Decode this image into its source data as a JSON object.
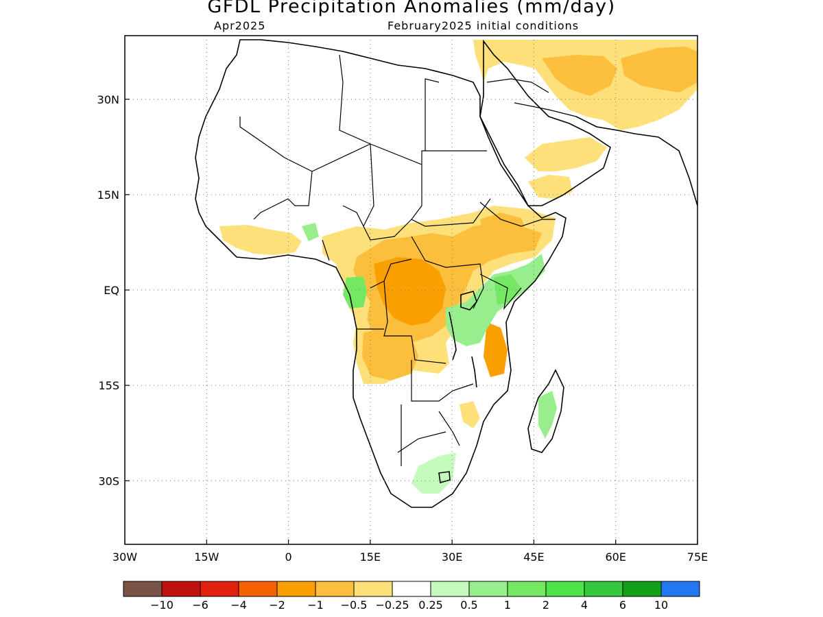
{
  "header": {
    "title": "GFDL Precipitation Anomalies (mm/day)",
    "month": "Apr2025",
    "init": "February2025 initial conditions"
  },
  "map": {
    "extent": {
      "lon": [
        -30,
        75
      ],
      "lat": [
        -40,
        40
      ]
    },
    "grid": "dotted",
    "lat_ticks": [
      {
        "value": 30,
        "label": "30N"
      },
      {
        "value": 15,
        "label": "15N"
      },
      {
        "value": 0,
        "label": "EQ"
      },
      {
        "value": -15,
        "label": "15S"
      },
      {
        "value": -30,
        "label": "30S"
      }
    ],
    "lon_ticks": [
      {
        "value": -30,
        "label": "30W"
      },
      {
        "value": -15,
        "label": "15W"
      },
      {
        "value": 0,
        "label": "0"
      },
      {
        "value": 15,
        "label": "15E"
      },
      {
        "value": 30,
        "label": "30E"
      },
      {
        "value": 45,
        "label": "45E"
      },
      {
        "value": 60,
        "label": "60E"
      },
      {
        "value": 75,
        "label": "75E"
      }
    ]
  },
  "colorbar": {
    "colors": [
      "#7a5346",
      "#c0100f",
      "#e2200e",
      "#f76200",
      "#f9a000",
      "#fbbf3d",
      "#fde07a",
      "#ffffff",
      "#c6fbbe",
      "#98ee8d",
      "#74e863",
      "#4fe34a",
      "#34c93c",
      "#139f18",
      "#2377f0"
    ],
    "labels": [
      "−10",
      "−6",
      "−4",
      "−2",
      "−1",
      "−0.5",
      "−0.25",
      "0.25",
      "0.5",
      "1",
      "2",
      "4",
      "6",
      "10"
    ]
  },
  "colors": {
    "dry_light": "#fde07a",
    "dry_mid": "#fbbf3d",
    "dry_strong": "#f9a000",
    "dry_vstrong": "#f76200",
    "wet_light": "#c6fbbe",
    "wet_mid": "#98ee8d",
    "wet_strong": "#74e863"
  }
}
